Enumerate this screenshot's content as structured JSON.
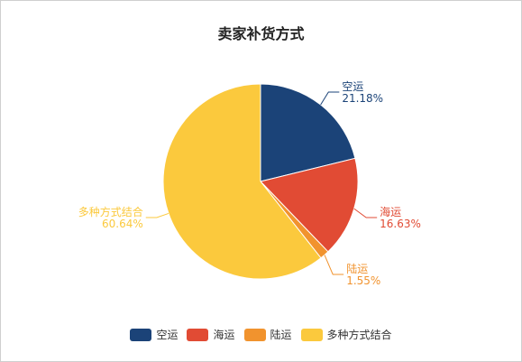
{
  "chart_data": {
    "type": "pie",
    "title": "卖家补货方式",
    "categories": [
      "空运",
      "海运",
      "陆运",
      "多种方式结合"
    ],
    "values": [
      21.18,
      16.63,
      1.55,
      60.64
    ],
    "value_labels": [
      "21.18%",
      "16.63%",
      "1.55%",
      "60.64%"
    ],
    "colors": [
      "#1b4378",
      "#e14b34",
      "#f1932e",
      "#fbc93d"
    ],
    "legend_position": "bottom-center",
    "grid": false
  }
}
